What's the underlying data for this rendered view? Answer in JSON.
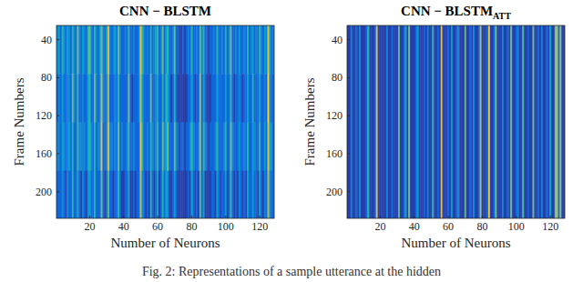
{
  "chart_data": [
    {
      "type": "heatmap",
      "title": "CNN − BLSTM",
      "x_label": "Number of Neurons",
      "y_label": "Frame Numbers",
      "xlim": [
        0.5,
        128.5
      ],
      "ylim": [
        25,
        228
      ],
      "xticks": [
        20,
        40,
        60,
        80,
        100,
        120
      ],
      "yticks": [
        40,
        80,
        120,
        160,
        200
      ],
      "zlim": [
        0.05,
        1
      ],
      "row_edges": [
        25,
        76,
        127,
        178,
        228
      ],
      "cells": [
        [
          0.3,
          0.4,
          0.2,
          0.5,
          0.3,
          0.2,
          0.4,
          0.3,
          0.2,
          0.5,
          0.3,
          0.2,
          0.6,
          0.3,
          0.2,
          0.4,
          0.3,
          0.2,
          0.5,
          0.6,
          0.3,
          0.2,
          0.5,
          0.3,
          0.2,
          0.4,
          0.6,
          0.3,
          0.2,
          0.4,
          0.8,
          0.3,
          0.2,
          0.3,
          0.4,
          0.2,
          0.6,
          0.3,
          0.2,
          0.2,
          0.3,
          0.2,
          0.5,
          0.2,
          0.2,
          0.3,
          0.2,
          0.2,
          0.3,
          0.8,
          0.5,
          0.3,
          0.2,
          0.3,
          0.2,
          0.5,
          0.2,
          0.3,
          0.4,
          0.5,
          0.2,
          0.3,
          0.6,
          0.2,
          0.4,
          0.5,
          0.2,
          0.2,
          0.3,
          0.6,
          0.2,
          0.2,
          0.1,
          0.1,
          0.2,
          0.1,
          0.2,
          0.3,
          0.2,
          0.5,
          0.2,
          0.2,
          0.3,
          0.2,
          0.6,
          0.3,
          0.5,
          0.2,
          0.2,
          0.1,
          0.2,
          0.2,
          0.3,
          0.2,
          0.5,
          0.2,
          0.2,
          0.3,
          0.2,
          0.5,
          0.2,
          0.3,
          0.6,
          0.2,
          0.2,
          0.3,
          0.2,
          0.4,
          0.2,
          0.2,
          0.3,
          0.2,
          0.5,
          0.2,
          0.3,
          0.4,
          0.2,
          0.3,
          0.2,
          0.5,
          0.3,
          0.2,
          0.4,
          0.3,
          0.8,
          0.4,
          0.2,
          0.3
        ],
        [
          0.2,
          0.3,
          0.2,
          0.4,
          0.2,
          0.2,
          0.3,
          0.3,
          0.2,
          0.6,
          0.3,
          0.2,
          0.5,
          0.2,
          0.2,
          0.3,
          0.2,
          0.2,
          0.4,
          0.5,
          0.2,
          0.2,
          0.6,
          0.3,
          0.2,
          0.3,
          0.7,
          0.3,
          0.2,
          0.3,
          0.7,
          0.2,
          0.2,
          0.2,
          0.3,
          0.2,
          0.5,
          0.2,
          0.2,
          0.2,
          0.2,
          0.2,
          0.6,
          0.2,
          0.1,
          0.2,
          0.2,
          0.2,
          0.3,
          0.7,
          0.4,
          0.2,
          0.2,
          0.2,
          0.2,
          0.6,
          0.2,
          0.2,
          0.3,
          0.4,
          0.2,
          0.2,
          0.5,
          0.2,
          0.5,
          0.4,
          0.2,
          0.1,
          0.2,
          0.5,
          0.2,
          0.1,
          0.1,
          0.1,
          0.1,
          0.1,
          0.1,
          0.2,
          0.2,
          0.4,
          0.2,
          0.1,
          0.2,
          0.2,
          0.7,
          0.2,
          0.4,
          0.2,
          0.1,
          0.1,
          0.1,
          0.2,
          0.2,
          0.2,
          0.4,
          0.2,
          0.2,
          0.2,
          0.2,
          0.4,
          0.2,
          0.2,
          0.5,
          0.2,
          0.1,
          0.2,
          0.2,
          0.3,
          0.2,
          0.1,
          0.2,
          0.2,
          0.4,
          0.2,
          0.2,
          0.5,
          0.2,
          0.2,
          0.2,
          0.4,
          0.2,
          0.2,
          0.3,
          0.2,
          0.9,
          0.3,
          0.2,
          0.2
        ],
        [
          0.3,
          0.3,
          0.2,
          0.4,
          0.3,
          0.2,
          0.3,
          0.4,
          0.2,
          0.5,
          0.2,
          0.2,
          0.5,
          0.3,
          0.3,
          0.3,
          0.3,
          0.2,
          0.4,
          0.5,
          0.3,
          0.2,
          0.5,
          0.2,
          0.3,
          0.3,
          0.8,
          0.2,
          0.2,
          0.3,
          0.8,
          0.3,
          0.3,
          0.2,
          0.3,
          0.2,
          0.6,
          0.2,
          0.3,
          0.2,
          0.2,
          0.3,
          0.5,
          0.2,
          0.2,
          0.3,
          0.2,
          0.2,
          0.2,
          0.8,
          0.5,
          0.2,
          0.2,
          0.3,
          0.2,
          0.5,
          0.3,
          0.2,
          0.3,
          0.5,
          0.2,
          0.2,
          0.6,
          0.3,
          0.4,
          0.6,
          0.2,
          0.2,
          0.2,
          0.6,
          0.3,
          0.2,
          0.1,
          0.2,
          0.2,
          0.1,
          0.2,
          0.2,
          0.3,
          0.5,
          0.3,
          0.2,
          0.2,
          0.3,
          0.7,
          0.2,
          0.5,
          0.3,
          0.2,
          0.1,
          0.2,
          0.2,
          0.2,
          0.3,
          0.5,
          0.2,
          0.2,
          0.2,
          0.3,
          0.5,
          0.2,
          0.2,
          0.6,
          0.3,
          0.2,
          0.2,
          0.2,
          0.4,
          0.2,
          0.2,
          0.3,
          0.2,
          0.5,
          0.2,
          0.2,
          0.4,
          0.3,
          0.2,
          0.2,
          0.5,
          0.2,
          0.2,
          0.4,
          0.2,
          0.8,
          0.4,
          0.3,
          0.2
        ],
        [
          0.2,
          0.2,
          0.2,
          0.3,
          0.2,
          0.1,
          0.3,
          0.2,
          0.2,
          0.5,
          0.2,
          0.2,
          0.4,
          0.2,
          0.1,
          0.3,
          0.2,
          0.1,
          0.3,
          0.4,
          0.2,
          0.2,
          0.5,
          0.2,
          0.2,
          0.2,
          0.6,
          0.2,
          0.1,
          0.2,
          0.6,
          0.2,
          0.2,
          0.1,
          0.2,
          0.2,
          0.5,
          0.2,
          0.1,
          0.1,
          0.2,
          0.2,
          0.4,
          0.1,
          0.1,
          0.2,
          0.1,
          0.2,
          0.2,
          0.7,
          0.3,
          0.2,
          0.1,
          0.2,
          0.1,
          0.5,
          0.2,
          0.1,
          0.2,
          0.4,
          0.1,
          0.2,
          0.5,
          0.2,
          0.4,
          0.3,
          0.1,
          0.1,
          0.2,
          0.4,
          0.2,
          0.1,
          0.1,
          0.1,
          0.1,
          0.1,
          0.1,
          0.2,
          0.1,
          0.4,
          0.2,
          0.1,
          0.2,
          0.1,
          0.6,
          0.2,
          0.4,
          0.1,
          0.1,
          0.1,
          0.1,
          0.2,
          0.2,
          0.1,
          0.4,
          0.2,
          0.1,
          0.2,
          0.2,
          0.4,
          0.1,
          0.2,
          0.5,
          0.2,
          0.1,
          0.2,
          0.1,
          0.3,
          0.2,
          0.1,
          0.2,
          0.1,
          0.4,
          0.2,
          0.2,
          0.4,
          0.2,
          0.2,
          0.1,
          0.4,
          0.2,
          0.1,
          0.3,
          0.2,
          0.7,
          0.3,
          0.2,
          0.2
        ]
      ]
    },
    {
      "type": "heatmap",
      "title": "CNN − BLSTM",
      "title_subscript": "ATT",
      "x_label": "Number of Neurons",
      "xlim": [
        0.5,
        128.5
      ],
      "ylim": [
        25,
        228
      ],
      "xticks": [
        20,
        40,
        60,
        80,
        100,
        120
      ],
      "yticks": [
        40,
        80,
        120,
        160,
        200
      ],
      "zlim": [
        0.05,
        1
      ],
      "row_edges": [
        25,
        228
      ],
      "cells": [
        [
          0.1,
          0.1,
          0.3,
          0.1,
          0.1,
          0.2,
          0.1,
          0.3,
          0.1,
          0.1,
          0.1,
          0.2,
          0.5,
          0.1,
          0.1,
          0.1,
          0.2,
          0.8,
          0.1,
          0.1,
          0.1,
          0.1,
          0.1,
          0.3,
          0.1,
          0.1,
          0.2,
          0.1,
          0.1,
          0.1,
          0.6,
          0.1,
          0.1,
          0.2,
          0.4,
          0.1,
          0.6,
          0.1,
          0.1,
          0.1,
          0.2,
          0.4,
          0.1,
          0.1,
          0.1,
          0.2,
          0.1,
          0.3,
          0.1,
          0.1,
          0.5,
          0.1,
          0.1,
          0.2,
          0.1,
          0.8,
          0.1,
          0.1,
          0.1,
          0.2,
          0.1,
          0.4,
          0.1,
          0.1,
          0.2,
          0.3,
          0.1,
          0.1,
          0.1,
          0.6,
          0.1,
          0.1,
          0.2,
          0.1,
          0.3,
          0.1,
          0.1,
          0.2,
          0.7,
          0.1,
          0.1,
          0.1,
          0.2,
          0.85,
          0.1,
          0.1,
          0.2,
          0.6,
          0.1,
          0.1,
          0.1,
          0.3,
          0.1,
          0.1,
          0.2,
          0.1,
          0.6,
          0.1,
          0.1,
          0.2,
          0.3,
          0.1,
          0.1,
          0.55,
          0.1,
          0.1,
          0.2,
          0.1,
          0.1,
          0.6,
          0.1,
          0.1,
          0.2,
          0.1,
          0.3,
          0.1,
          0.1,
          0.2,
          0.1,
          0.4,
          0.1,
          0.1,
          0.65,
          0.7,
          0.2,
          0.65,
          0.1,
          0.1
        ]
      ]
    }
  ],
  "caption": "Fig. 2: Representations of a sample utterance at the hidden"
}
